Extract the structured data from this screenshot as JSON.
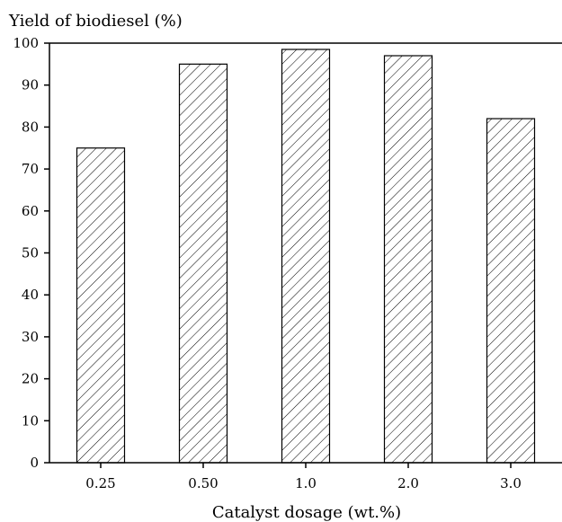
{
  "chart_data": {
    "type": "bar",
    "title": "",
    "xlabel": "Catalyst dosage (wt.%)",
    "ylabel": "Yield of biodiesel (%)",
    "categories": [
      "0.25",
      "0.50",
      "1.0",
      "2.0",
      "3.0"
    ],
    "values": [
      75,
      95,
      98.5,
      97,
      82
    ],
    "ylim": [
      0,
      100
    ],
    "yticks": [
      "0",
      "10",
      "20",
      "30",
      "40",
      "50",
      "60",
      "70",
      "80",
      "90",
      "100"
    ],
    "grid": false,
    "legend": "none",
    "bar_fill": "diagonal-hatch",
    "colors": {
      "bar_stroke": "#000000",
      "hatch": "#000000",
      "background": "#ffffff"
    }
  }
}
